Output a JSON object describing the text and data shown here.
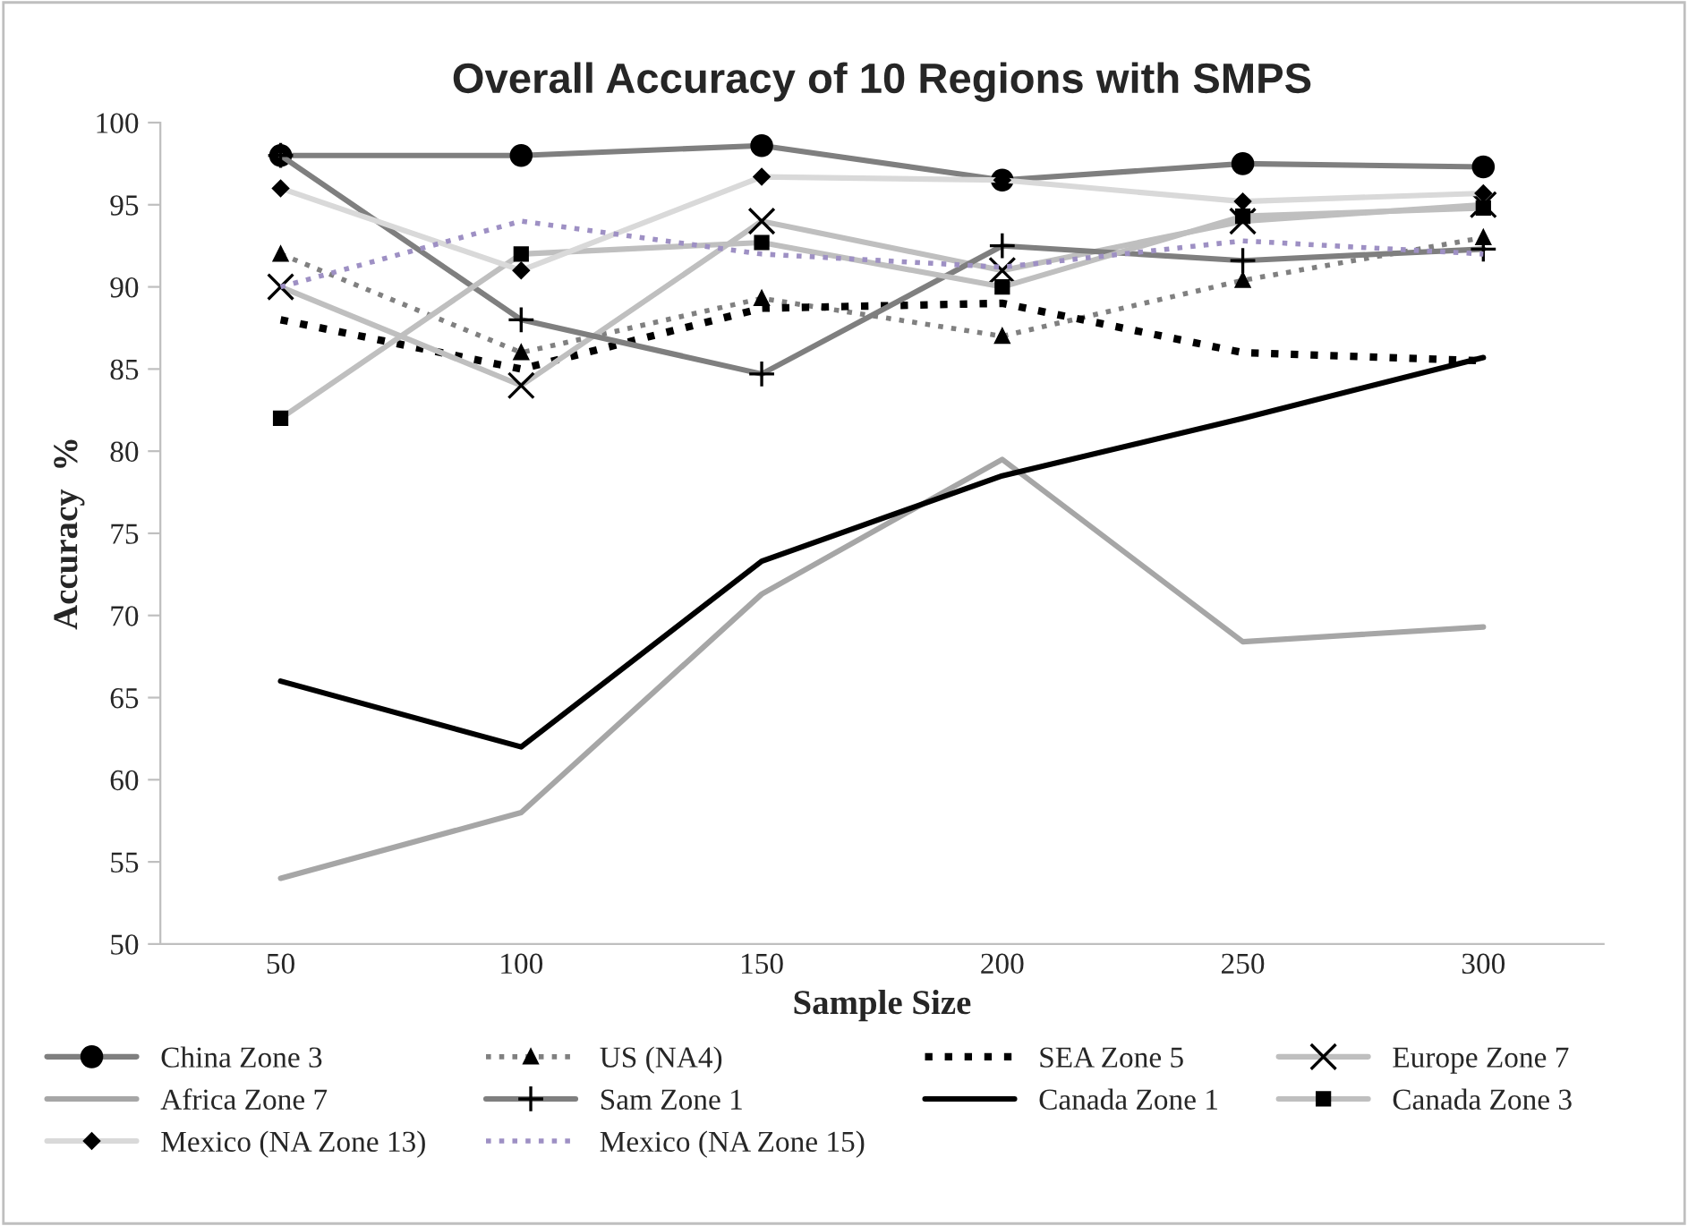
{
  "chart_data": {
    "type": "line",
    "title": "Overall Accuracy of 10 Regions with SMPS",
    "xlabel": "Sample Size",
    "ylabel": "Accuracy  %",
    "categories": [
      "50",
      "100",
      "150",
      "200",
      "250",
      "300"
    ],
    "ylim": [
      50,
      100
    ],
    "yticks": [
      50,
      55,
      60,
      65,
      70,
      75,
      80,
      85,
      90,
      95,
      100
    ],
    "grid": false,
    "legend": "bottom",
    "series": [
      {
        "name": "China Zone 3",
        "color": "#7f7f7f",
        "marker": "circle",
        "line_style": "solid",
        "values": [
          98,
          98,
          98.6,
          96.5,
          97.5,
          97.3
        ]
      },
      {
        "name": "US (NA4)",
        "color": "#808080",
        "marker": "triangle",
        "line_style": "dotted",
        "values": [
          92,
          86,
          89.3,
          87,
          90.4,
          93
        ]
      },
      {
        "name": "SEA Zone 5",
        "color": "#000000",
        "marker": "none",
        "line_style": "dotted",
        "values": [
          88,
          85,
          88.7,
          89,
          86,
          85.5
        ]
      },
      {
        "name": "Europe Zone 7",
        "color": "#bfbfbf",
        "marker": "cross",
        "line_style": "solid",
        "values": [
          90,
          84,
          94,
          91,
          94,
          95
        ]
      },
      {
        "name": "Africa Zone 7",
        "color": "#a6a6a6",
        "marker": "none",
        "line_style": "solid",
        "values": [
          54,
          58,
          71.3,
          79.5,
          68.4,
          69.3
        ]
      },
      {
        "name": "Sam Zone 1",
        "color": "#7f7f7f",
        "marker": "plus",
        "line_style": "solid",
        "values": [
          98,
          88,
          84.7,
          92.5,
          91.6,
          92.3
        ]
      },
      {
        "name": "Canada Zone 1",
        "color": "#000000",
        "marker": "none",
        "line_style": "solid",
        "values": [
          66,
          62,
          73.3,
          78.5,
          82,
          85.7
        ]
      },
      {
        "name": "Canada Zone 3",
        "color": "#bfbfbf",
        "marker": "square",
        "line_style": "solid",
        "values": [
          82,
          92,
          92.7,
          90,
          94.3,
          94.8
        ]
      },
      {
        "name": "Mexico (NA Zone 13)",
        "color": "#d9d9d9",
        "marker": "diamond",
        "line_style": "solid",
        "values": [
          96,
          91,
          96.7,
          96.5,
          95.2,
          95.7
        ]
      },
      {
        "name": "Mexico (NA Zone 15)",
        "color": "#9e90c4",
        "marker": "none",
        "line_style": "dotted",
        "values": [
          90,
          94,
          92,
          91.2,
          92.8,
          92
        ]
      }
    ]
  }
}
